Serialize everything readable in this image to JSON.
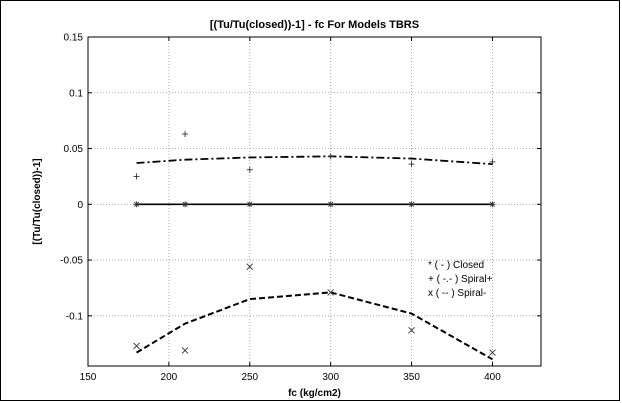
{
  "chart_data": {
    "type": "line",
    "title": "[(Tu/Tu(closed))-1] - fc For Models TBRS",
    "xlabel": "fc (kg/cm2)",
    "ylabel": "[(Tu/Tu(closed))-1]",
    "xlim": [
      150,
      430
    ],
    "ylim": [
      -0.145,
      0.15
    ],
    "xticks": [
      150,
      200,
      250,
      300,
      350,
      400
    ],
    "yticks": [
      -0.1,
      -0.05,
      0,
      0.05,
      0.1,
      0.15
    ],
    "xtick_labels": [
      "150",
      "200",
      "250",
      "300",
      "350",
      "400"
    ],
    "ytick_labels": [
      "-0.1",
      "-0.05",
      "0",
      "0.05",
      "0.1",
      "0.15"
    ],
    "grid": true,
    "legend_position": "lower-right inside plot",
    "series": [
      {
        "name": "Closed",
        "legend_label": "* ( - )  Closed",
        "line_style": "solid",
        "marker": "*",
        "points": [
          [
            180,
            0
          ],
          [
            210,
            0
          ],
          [
            250,
            0
          ],
          [
            300,
            0
          ],
          [
            350,
            0
          ],
          [
            400,
            0
          ]
        ],
        "fit": [
          [
            180,
            0
          ],
          [
            400,
            0
          ]
        ]
      },
      {
        "name": "Spiral+",
        "legend_label": "+ ( -.- )  Spiral+",
        "line_style": "dashdot",
        "marker": "+",
        "points": [
          [
            180,
            0.025
          ],
          [
            210,
            0.063
          ],
          [
            250,
            0.031
          ],
          [
            300,
            0.043
          ],
          [
            350,
            0.036
          ],
          [
            400,
            0.038
          ]
        ],
        "fit": [
          [
            180,
            0.037
          ],
          [
            210,
            0.04
          ],
          [
            250,
            0.042
          ],
          [
            300,
            0.043
          ],
          [
            350,
            0.041
          ],
          [
            400,
            0.036
          ]
        ]
      },
      {
        "name": "Spiral-",
        "legend_label": "x ( -- )  Spiral-",
        "line_style": "dashed",
        "marker": "x",
        "points": [
          [
            180,
            -0.127
          ],
          [
            210,
            -0.131
          ],
          [
            250,
            -0.056
          ],
          [
            300,
            -0.079
          ],
          [
            350,
            -0.113
          ],
          [
            400,
            -0.133
          ]
        ],
        "fit": [
          [
            180,
            -0.133
          ],
          [
            210,
            -0.107
          ],
          [
            250,
            -0.085
          ],
          [
            300,
            -0.079
          ],
          [
            350,
            -0.098
          ],
          [
            400,
            -0.139
          ]
        ]
      }
    ]
  }
}
